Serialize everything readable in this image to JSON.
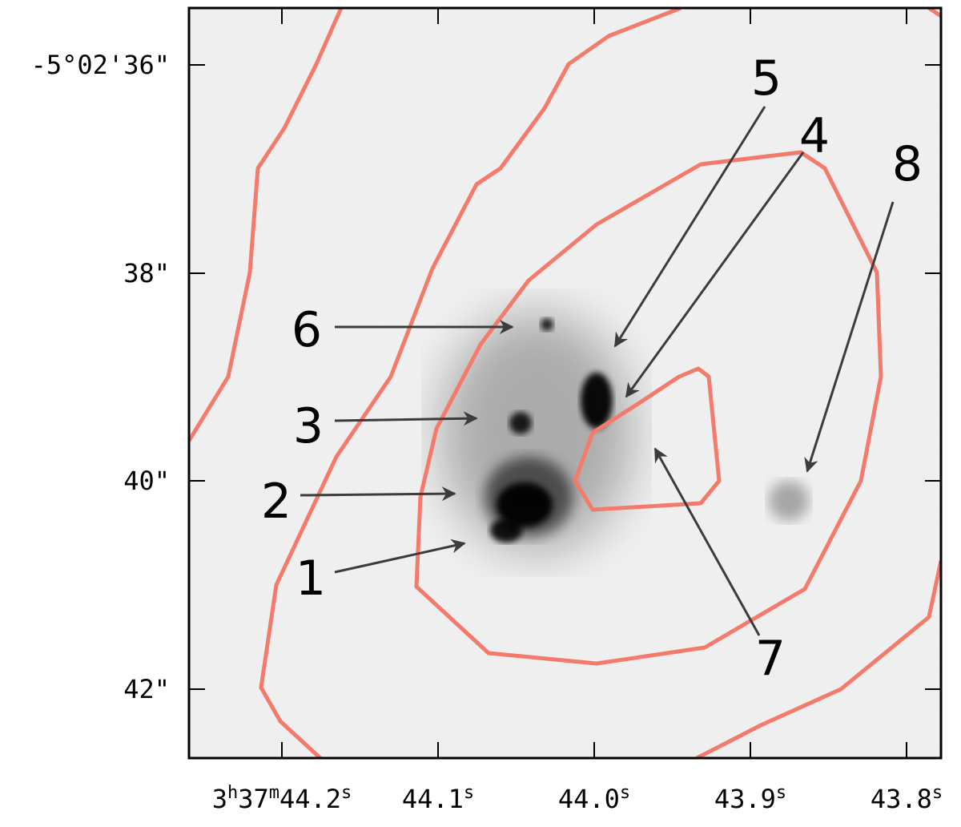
{
  "x_axis": {
    "ticks": [
      [
        "3",
        "h",
        "37",
        "m",
        "44.2",
        "s"
      ],
      [
        "44.1",
        "s"
      ],
      [
        "44.0",
        "s"
      ],
      [
        "43.9",
        "s"
      ],
      [
        "43.8",
        "s"
      ]
    ]
  },
  "y_axis": {
    "ticks": [
      "-5°02'36\"",
      "38\"",
      "40\"",
      "42\""
    ]
  },
  "labels": [
    "1",
    "2",
    "3",
    "4",
    "5",
    "6",
    "7",
    "8"
  ]
}
